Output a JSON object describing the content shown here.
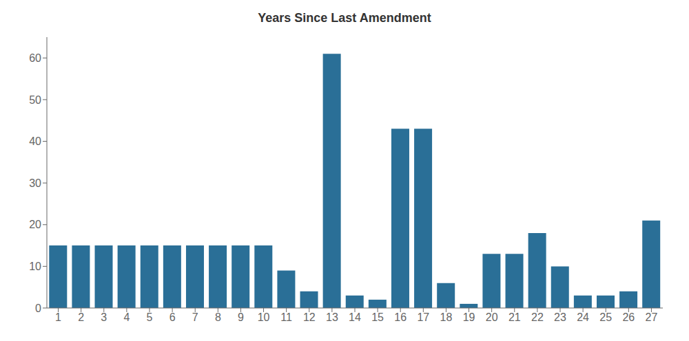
{
  "chart_data": {
    "type": "bar",
    "title": "Years Since Last Amendment",
    "categories": [
      1,
      2,
      3,
      4,
      5,
      6,
      7,
      8,
      9,
      10,
      11,
      12,
      13,
      14,
      15,
      16,
      17,
      18,
      19,
      20,
      21,
      22,
      23,
      24,
      25,
      26,
      27
    ],
    "values": [
      15,
      15,
      15,
      15,
      15,
      15,
      15,
      15,
      15,
      15,
      9,
      4,
      61,
      3,
      2,
      43,
      43,
      6,
      1,
      13,
      13,
      18,
      10,
      3,
      3,
      4,
      21
    ],
    "color": "#2a6f97",
    "ylim": [
      0,
      65
    ],
    "yticks": [
      0,
      10,
      20,
      30,
      40,
      50,
      60
    ],
    "grid": false
  }
}
